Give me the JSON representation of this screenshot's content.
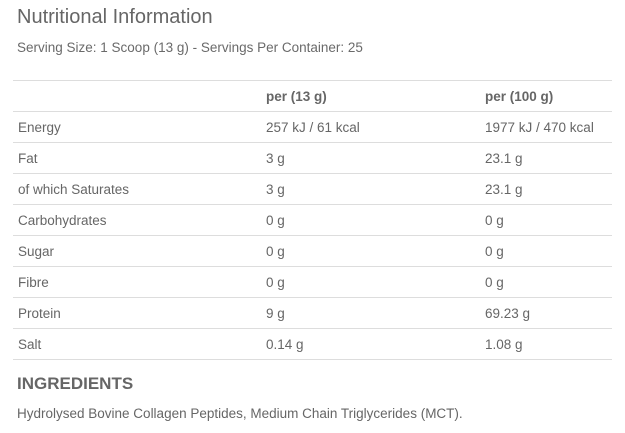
{
  "title": "Nutritional Information",
  "serving": "Serving Size: 1 Scoop (13 g) - Servings Per Container: 25",
  "table": {
    "headers": [
      "",
      "per (13 g)",
      "per (100 g)"
    ],
    "rows": [
      [
        "Energy",
        "257 kJ / 61 kcal",
        "1977 kJ / 470 kcal"
      ],
      [
        "Fat",
        "3 g",
        "23.1 g"
      ],
      [
        "of which Saturates",
        "3 g",
        "23.1 g"
      ],
      [
        "Carbohydrates",
        "0 g",
        "0 g"
      ],
      [
        "Sugar",
        "0 g",
        "0 g"
      ],
      [
        "Fibre",
        "0 g",
        "0 g"
      ],
      [
        "Protein",
        "9 g",
        "69.23 g"
      ],
      [
        "Salt",
        "0.14 g",
        "1.08 g"
      ]
    ]
  },
  "ingredients": {
    "title": "INGREDIENTS",
    "text": "Hydrolysed Bovine Collagen Peptides, Medium Chain Triglycerides (MCT)."
  }
}
